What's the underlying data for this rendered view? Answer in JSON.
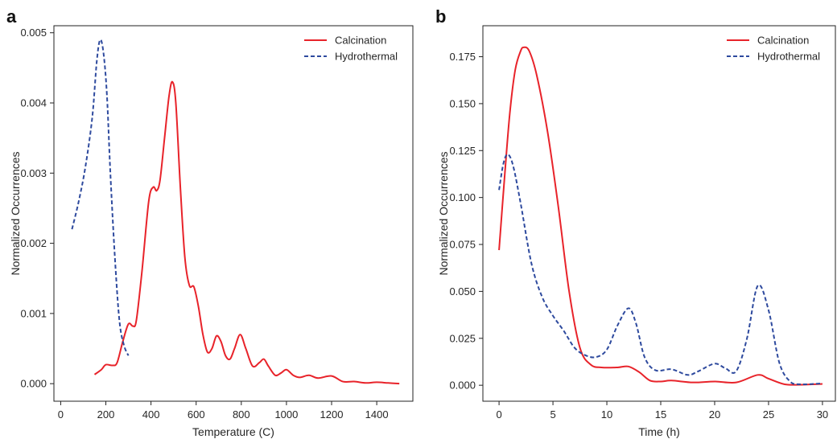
{
  "colors": {
    "calcination": "#e8232a",
    "hydrothermal": "#2e4a9e"
  },
  "chart_data": [
    {
      "panel": "a",
      "type": "line",
      "xlabel": "Temperature (C)",
      "ylabel": "Normalized Occurrences",
      "xlim": [
        -30,
        1560
      ],
      "ylim": [
        -0.00025,
        0.0051
      ],
      "xticks": [
        0,
        200,
        400,
        600,
        800,
        1000,
        1200,
        1400
      ],
      "yticks": [
        0.0,
        0.001,
        0.002,
        0.003,
        0.004,
        0.005
      ],
      "xtick_labels": [
        "0",
        "200",
        "400",
        "600",
        "800",
        "1000",
        "1200",
        "1400"
      ],
      "ytick_labels": [
        "0.000",
        "0.001",
        "0.002",
        "0.003",
        "0.004",
        "0.005"
      ],
      "legend": {
        "position": "top-right",
        "entries": [
          "Calcination",
          "Hydrothermal"
        ]
      },
      "grid": false,
      "series": [
        {
          "name": "Calcination",
          "style": "solid",
          "color": "#e8232a",
          "points": [
            [
              150,
              0.00013
            ],
            [
              180,
              0.0002
            ],
            [
              200,
              0.00027
            ],
            [
              230,
              0.00026
            ],
            [
              250,
              0.0003
            ],
            [
              275,
              0.0006
            ],
            [
              300,
              0.00085
            ],
            [
              320,
              0.00082
            ],
            [
              335,
              0.0009
            ],
            [
              360,
              0.0016
            ],
            [
              390,
              0.0026
            ],
            [
              410,
              0.0028
            ],
            [
              425,
              0.00275
            ],
            [
              440,
              0.0029
            ],
            [
              460,
              0.0035
            ],
            [
              480,
              0.0041
            ],
            [
              495,
              0.0043
            ],
            [
              510,
              0.004
            ],
            [
              530,
              0.0028
            ],
            [
              550,
              0.0018
            ],
            [
              570,
              0.0014
            ],
            [
              590,
              0.00138
            ],
            [
              610,
              0.0011
            ],
            [
              630,
              0.0007
            ],
            [
              650,
              0.00045
            ],
            [
              670,
              0.0005
            ],
            [
              690,
              0.00068
            ],
            [
              710,
              0.0006
            ],
            [
              730,
              0.0004
            ],
            [
              750,
              0.00035
            ],
            [
              770,
              0.0005
            ],
            [
              795,
              0.0007
            ],
            [
              820,
              0.0005
            ],
            [
              850,
              0.00025
            ],
            [
              880,
              0.0003
            ],
            [
              900,
              0.00035
            ],
            [
              920,
              0.00025
            ],
            [
              950,
              0.00012
            ],
            [
              975,
              0.00015
            ],
            [
              1000,
              0.0002
            ],
            [
              1030,
              0.00012
            ],
            [
              1060,
              9e-05
            ],
            [
              1100,
              0.00012
            ],
            [
              1140,
              8e-05
            ],
            [
              1200,
              0.00011
            ],
            [
              1250,
              3e-05
            ],
            [
              1300,
              3e-05
            ],
            [
              1350,
              1e-05
            ],
            [
              1400,
              2e-05
            ],
            [
              1450,
              1e-05
            ],
            [
              1500,
              0.0
            ]
          ]
        },
        {
          "name": "Hydrothermal",
          "style": "dashed",
          "color": "#2e4a9e",
          "points": [
            [
              50,
              0.0022
            ],
            [
              80,
              0.0026
            ],
            [
              110,
              0.0031
            ],
            [
              140,
              0.0038
            ],
            [
              160,
              0.0046
            ],
            [
              175,
              0.0049
            ],
            [
              190,
              0.0047
            ],
            [
              205,
              0.0041
            ],
            [
              220,
              0.003
            ],
            [
              240,
              0.0018
            ],
            [
              260,
              0.0009
            ],
            [
              280,
              0.00055
            ],
            [
              300,
              0.0004
            ]
          ]
        }
      ]
    },
    {
      "panel": "b",
      "type": "line",
      "xlabel": "Time (h)",
      "ylabel": "Normalized Occurrences",
      "xlim": [
        -1.5,
        31.2
      ],
      "ylim": [
        -0.0085,
        0.1915
      ],
      "xticks": [
        0,
        5,
        10,
        15,
        20,
        25,
        30
      ],
      "yticks": [
        0.0,
        0.025,
        0.05,
        0.075,
        0.1,
        0.125,
        0.15,
        0.175
      ],
      "xtick_labels": [
        "0",
        "5",
        "10",
        "15",
        "20",
        "25",
        "30"
      ],
      "ytick_labels": [
        "0.000",
        "0.025",
        "0.050",
        "0.075",
        "0.100",
        "0.125",
        "0.150",
        "0.175"
      ],
      "legend": {
        "position": "top-right",
        "entries": [
          "Calcination",
          "Hydrothermal"
        ]
      },
      "grid": false,
      "series": [
        {
          "name": "Calcination",
          "style": "solid",
          "color": "#e8232a",
          "points": [
            [
              0,
              0.072
            ],
            [
              0.5,
              0.11
            ],
            [
              1,
              0.145
            ],
            [
              1.5,
              0.168
            ],
            [
              2,
              0.178
            ],
            [
              2.3,
              0.18
            ],
            [
              2.8,
              0.178
            ],
            [
              3.5,
              0.165
            ],
            [
              4.5,
              0.135
            ],
            [
              5.5,
              0.095
            ],
            [
              6.5,
              0.05
            ],
            [
              7.5,
              0.02
            ],
            [
              8.5,
              0.011
            ],
            [
              9.5,
              0.0095
            ],
            [
              11,
              0.0095
            ],
            [
              12,
              0.01
            ],
            [
              13,
              0.007
            ],
            [
              14,
              0.0025
            ],
            [
              15,
              0.002
            ],
            [
              16,
              0.0025
            ],
            [
              18,
              0.0015
            ],
            [
              20,
              0.002
            ],
            [
              22,
              0.0015
            ],
            [
              24,
              0.0055
            ],
            [
              25,
              0.0035
            ],
            [
              26.5,
              0.0005
            ],
            [
              28,
              0.0003
            ],
            [
              30,
              0.0007
            ]
          ]
        },
        {
          "name": "Hydrothermal",
          "style": "dashed",
          "color": "#2e4a9e",
          "points": [
            [
              0,
              0.104
            ],
            [
              0.4,
              0.118
            ],
            [
              0.8,
              0.123
            ],
            [
              1.3,
              0.117
            ],
            [
              2,
              0.097
            ],
            [
              3,
              0.065
            ],
            [
              4,
              0.047
            ],
            [
              5,
              0.037
            ],
            [
              6,
              0.029
            ],
            [
              7,
              0.02
            ],
            [
              8,
              0.016
            ],
            [
              9,
              0.015
            ],
            [
              10,
              0.019
            ],
            [
              11,
              0.032
            ],
            [
              12,
              0.041
            ],
            [
              12.7,
              0.033
            ],
            [
              13.5,
              0.015
            ],
            [
              14.5,
              0.008
            ],
            [
              16,
              0.0085
            ],
            [
              17.5,
              0.0055
            ],
            [
              18.5,
              0.0075
            ],
            [
              20,
              0.0115
            ],
            [
              21,
              0.009
            ],
            [
              22,
              0.0075
            ],
            [
              23,
              0.025
            ],
            [
              24,
              0.053
            ],
            [
              25,
              0.04
            ],
            [
              26,
              0.012
            ],
            [
              27,
              0.002
            ],
            [
              28,
              0.0005
            ],
            [
              30,
              0.001
            ]
          ]
        }
      ]
    }
  ]
}
